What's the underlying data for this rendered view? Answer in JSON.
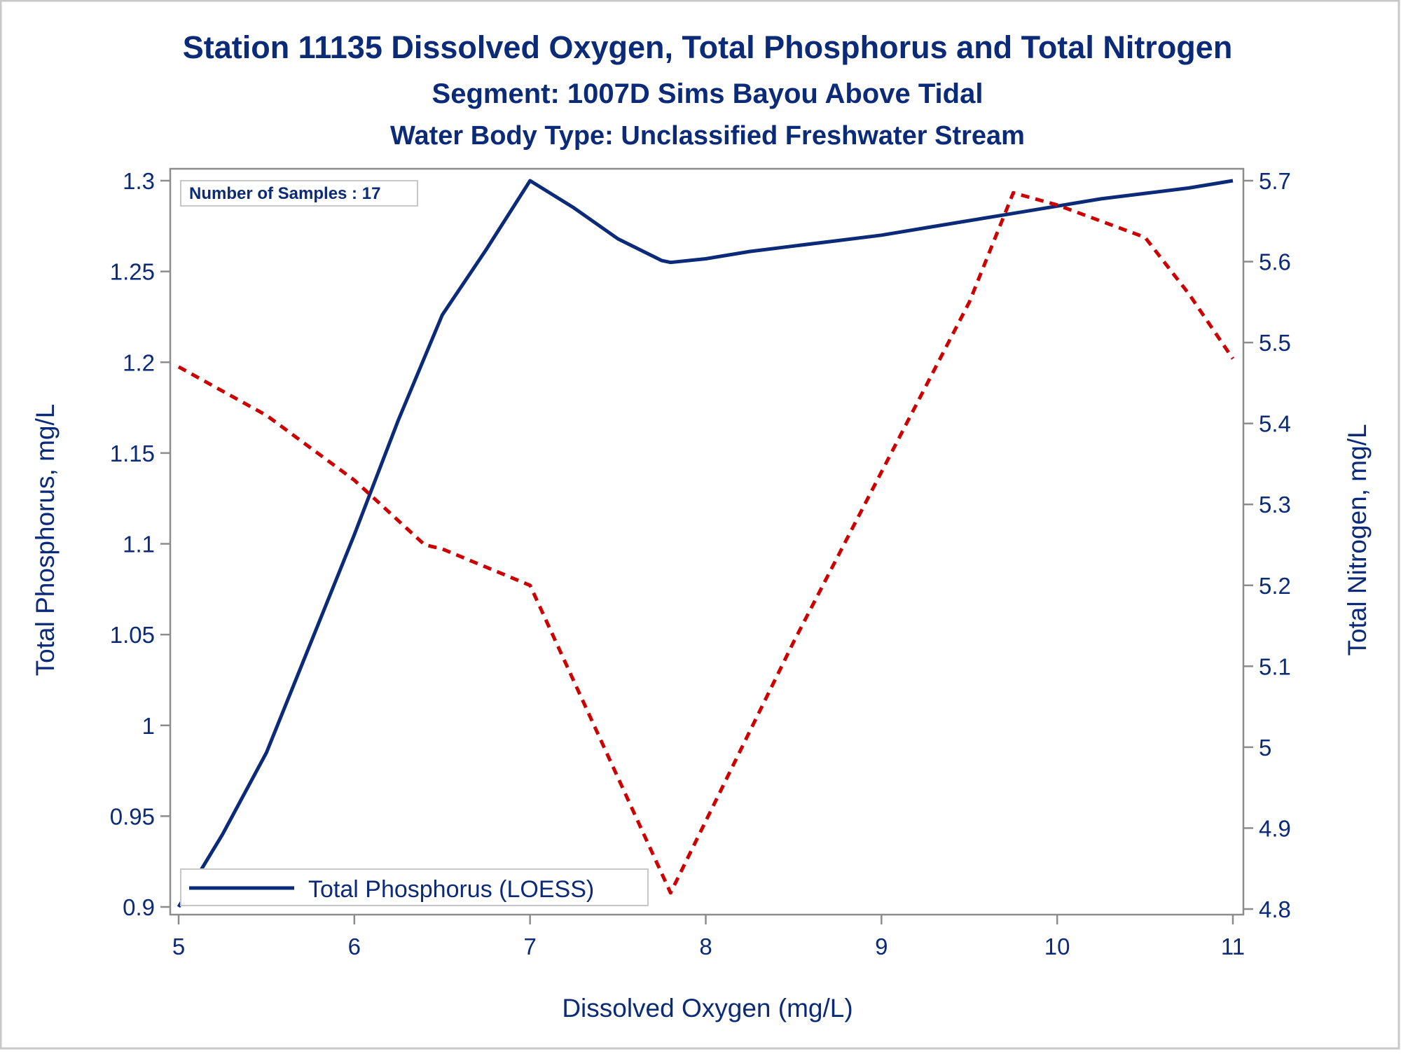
{
  "chart_data": {
    "type": "line",
    "title": "Station 11135  Dissolved Oxygen, Total Phosphorus and Total Nitrogen",
    "subtitle": "Segment: 1007D  Sims Bayou Above Tidal",
    "subtitle2": "Water Body Type: Unclassified Freshwater Stream",
    "xlabel": "Dissolved Oxygen (mg/L)",
    "ylabel": "Total Phosphorus, mg/L",
    "y2label": "Total Nitrogen, mg/L",
    "xlim": [
      5,
      11
    ],
    "ylim": [
      0.9,
      1.3
    ],
    "y2lim": [
      4.8,
      5.7
    ],
    "x_ticks": [
      "5",
      "6",
      "7",
      "8",
      "9",
      "10",
      "11"
    ],
    "y_ticks": [
      "0.9",
      "0.95",
      "1",
      "1.05",
      "1.1",
      "1.15",
      "1.2",
      "1.25",
      "1.3"
    ],
    "y2_ticks": [
      "4.8",
      "4.9",
      "5",
      "5.1",
      "5.2",
      "5.3",
      "5.4",
      "5.5",
      "5.6",
      "5.7"
    ],
    "annotation": "Number of Samples : 17",
    "legend_position": "bottom-left",
    "grid": false,
    "series": [
      {
        "name": "Total Phosphorus (LOESS)",
        "axis": "left",
        "style": "solid",
        "color": "#0b2a78",
        "x": [
          5.0,
          5.25,
          5.5,
          5.75,
          6.0,
          6.25,
          6.5,
          6.75,
          7.0,
          7.25,
          7.5,
          7.75,
          7.8,
          8.0,
          8.25,
          8.5,
          8.75,
          9.0,
          9.25,
          9.5,
          9.75,
          10.0,
          10.25,
          10.5,
          10.75,
          11.0
        ],
        "y": [
          0.9,
          0.94,
          0.985,
          1.045,
          1.105,
          1.168,
          1.226,
          1.262,
          1.3,
          1.285,
          1.268,
          1.256,
          1.255,
          1.257,
          1.261,
          1.264,
          1.267,
          1.27,
          1.274,
          1.278,
          1.282,
          1.286,
          1.29,
          1.293,
          1.296,
          1.3
        ]
      },
      {
        "axis": "right",
        "style": "dashed",
        "color": "#cc0000",
        "x": [
          5.0,
          5.5,
          6.0,
          6.4,
          6.5,
          7.0,
          7.8,
          8.5,
          9.0,
          9.5,
          9.75,
          10.0,
          10.25,
          10.5,
          10.75,
          11.0
        ],
        "y": [
          5.47,
          5.41,
          5.33,
          5.25,
          5.245,
          5.2,
          4.82,
          5.13,
          5.34,
          5.55,
          5.685,
          5.67,
          5.65,
          5.63,
          5.56,
          5.48
        ]
      }
    ]
  }
}
